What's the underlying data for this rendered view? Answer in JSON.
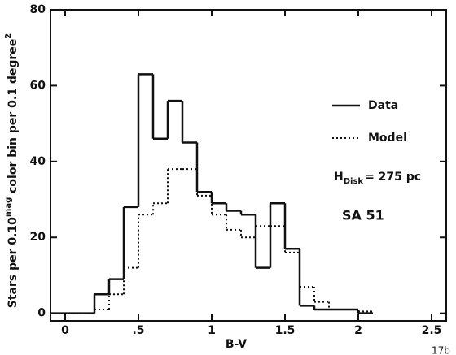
{
  "chart_data": {
    "type": "histogram",
    "x_label": "B-V",
    "y_label_parts": [
      "Stars per 0.10",
      "mag",
      " color bin per 0.1 degree",
      "2"
    ],
    "bins": [
      -0.1,
      0,
      0.1,
      0.2,
      0.3,
      0.4,
      0.5,
      0.6,
      0.7,
      0.8,
      0.9,
      1.0,
      1.1,
      1.2,
      1.3,
      1.4,
      1.5,
      1.6,
      1.7,
      1.8,
      1.9,
      2.0,
      2.1
    ],
    "series": [
      {
        "name": "Data",
        "color": "#111111",
        "line_style": "solid",
        "values": [
          0,
          0,
          0,
          5,
          9,
          28,
          63,
          46,
          56,
          45,
          32,
          29,
          27,
          26,
          12,
          29,
          17,
          2,
          1,
          1,
          1,
          0
        ]
      },
      {
        "name": "Model",
        "color": "#111111",
        "line_style": "dotted",
        "values": [
          0,
          0,
          0,
          1,
          5,
          12,
          26,
          29,
          38,
          38,
          31,
          26,
          22,
          20,
          23,
          23,
          16,
          7,
          3,
          1,
          1,
          0.5
        ]
      }
    ],
    "xlim": [
      -0.1,
      2.6
    ],
    "ylim": [
      -2,
      80
    ],
    "xticks": [
      0,
      {
        "value": 0.5,
        "label": ".5"
      },
      1,
      1.5,
      2,
      2.5
    ],
    "yticks": [
      0,
      20,
      40,
      60,
      80
    ],
    "annotations": {
      "h_main": "H",
      "h_sub": "Disk",
      "h_rest": "= 275 pc",
      "field": "SA 51",
      "figure": "17b"
    }
  }
}
